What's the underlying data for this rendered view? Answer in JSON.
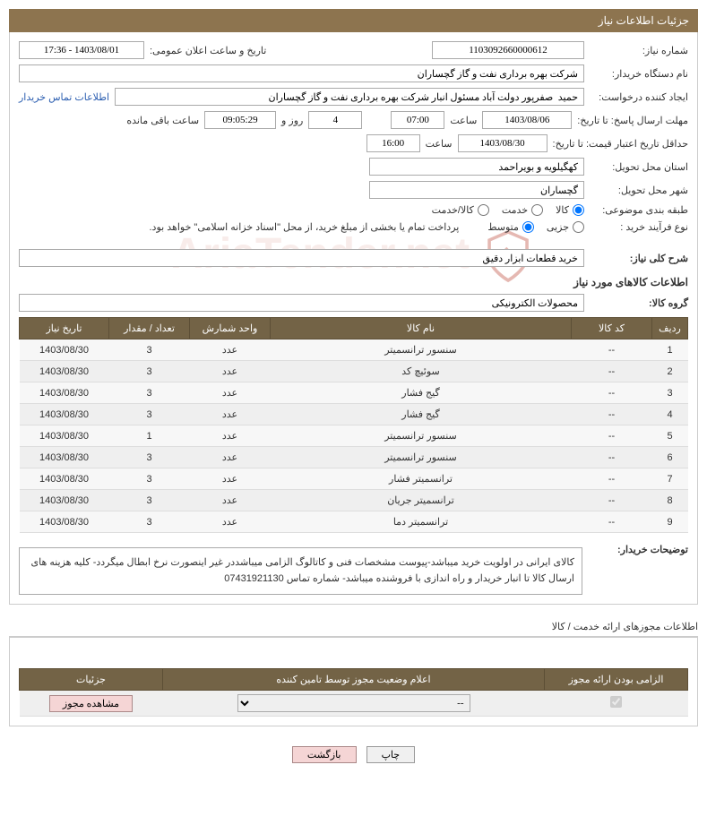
{
  "header": {
    "title": "جزئیات اطلاعات نیاز"
  },
  "form": {
    "need_no_label": "شماره نیاز:",
    "need_no": "1103092660000612",
    "announce_label": "تاریخ و ساعت اعلان عمومی:",
    "announce_value": "1403/08/01 - 17:36",
    "buyer_org_label": "نام دستگاه خریدار:",
    "buyer_org": "شرکت بهره برداری نفت و گاز گچساران",
    "requester_label": "ایجاد کننده درخواست:",
    "requester": "حمید  صفرپور دولت آباد مسئول انبار شرکت بهره برداری نفت و گاز گچساران",
    "contact_link": "اطلاعات تماس خریدار",
    "deadline_label": "مهلت ارسال پاسخ: تا تاریخ:",
    "deadline_date": "1403/08/06",
    "time_label": "ساعت",
    "deadline_time": "07:00",
    "days_count": "4",
    "days_and": "روز و",
    "countdown": "09:05:29",
    "remaining_label": "ساعت باقی مانده",
    "validity_label": "حداقل تاریخ اعتبار قیمت: تا تاریخ:",
    "validity_date": "1403/08/30",
    "validity_time": "16:00",
    "province_label": "استان محل تحویل:",
    "province": "کهگیلویه و بویراحمد",
    "city_label": "شهر محل تحویل:",
    "city": "گچساران",
    "category_label": "طبقه بندی موضوعی:",
    "purchase_type_label": "نوع فرآیند خرید :",
    "payment_note": "پرداخت تمام یا بخشی از مبلغ خرید، از محل \"اسناد خزانه اسلامی\" خواهد بود.",
    "categories": {
      "goods": "کالا",
      "service": "خدمت",
      "goods_service": "کالا/خدمت"
    },
    "purchase_types": {
      "partial": "جزیی",
      "medium": "متوسط"
    }
  },
  "need_summary": {
    "label": "شرح کلی نیاز:",
    "value": "خرید قطعات ابزار دقیق"
  },
  "goods_info": {
    "title": "اطلاعات کالاهای مورد نیاز",
    "group_label": "گروه کالا:",
    "group_value": "محصولات الکترونیکی"
  },
  "table": {
    "headers": {
      "row": "ردیف",
      "code": "کد کالا",
      "name": "نام کالا",
      "unit": "واحد شمارش",
      "qty": "تعداد / مقدار",
      "date": "تاریخ نیاز"
    },
    "rows": [
      {
        "row": "1",
        "code": "--",
        "name": "سنسور ترانسمیتر",
        "unit": "عدد",
        "qty": "3",
        "date": "1403/08/30"
      },
      {
        "row": "2",
        "code": "--",
        "name": "سوئیچ کد",
        "unit": "عدد",
        "qty": "3",
        "date": "1403/08/30"
      },
      {
        "row": "3",
        "code": "--",
        "name": "گیج فشار",
        "unit": "عدد",
        "qty": "3",
        "date": "1403/08/30"
      },
      {
        "row": "4",
        "code": "--",
        "name": "گیج فشار",
        "unit": "عدد",
        "qty": "3",
        "date": "1403/08/30"
      },
      {
        "row": "5",
        "code": "--",
        "name": "سنسور ترانسمیتر",
        "unit": "عدد",
        "qty": "1",
        "date": "1403/08/30"
      },
      {
        "row": "6",
        "code": "--",
        "name": "سنسور ترانسمیتر",
        "unit": "عدد",
        "qty": "3",
        "date": "1403/08/30"
      },
      {
        "row": "7",
        "code": "--",
        "name": "ترانسمیتر فشار",
        "unit": "عدد",
        "qty": "3",
        "date": "1403/08/30"
      },
      {
        "row": "8",
        "code": "--",
        "name": "ترانسمیتر جریان",
        "unit": "عدد",
        "qty": "3",
        "date": "1403/08/30"
      },
      {
        "row": "9",
        "code": "--",
        "name": "ترانسمیتر دما",
        "unit": "عدد",
        "qty": "3",
        "date": "1403/08/30"
      }
    ]
  },
  "buyer_note": {
    "label": "توضیحات خریدار:",
    "text": "کالای ایرانی در اولویت خرید میباشد-پیوست مشخصات فنی و کاتالوگ  الزامی میباشددر غیر اینصورت نرخ ابطال میگردد- کلیه هزینه های ارسال  کالا  تا انبار خریدار و راه اندازی با فروشنده میباشد- شماره تماس 07431921130"
  },
  "license": {
    "title": "اطلاعات مجوزهای ارائه خدمت / کالا",
    "headers": {
      "mandatory": "الزامی بودن ارائه مجوز",
      "status": "اعلام وضعیت مجوز توسط تامین کننده",
      "details": "جزئیات"
    },
    "view_btn": "مشاهده مجوز",
    "select_placeholder": "--"
  },
  "footer": {
    "print": "چاپ",
    "back": "بازگشت"
  },
  "watermark": "AriaTender.net"
}
